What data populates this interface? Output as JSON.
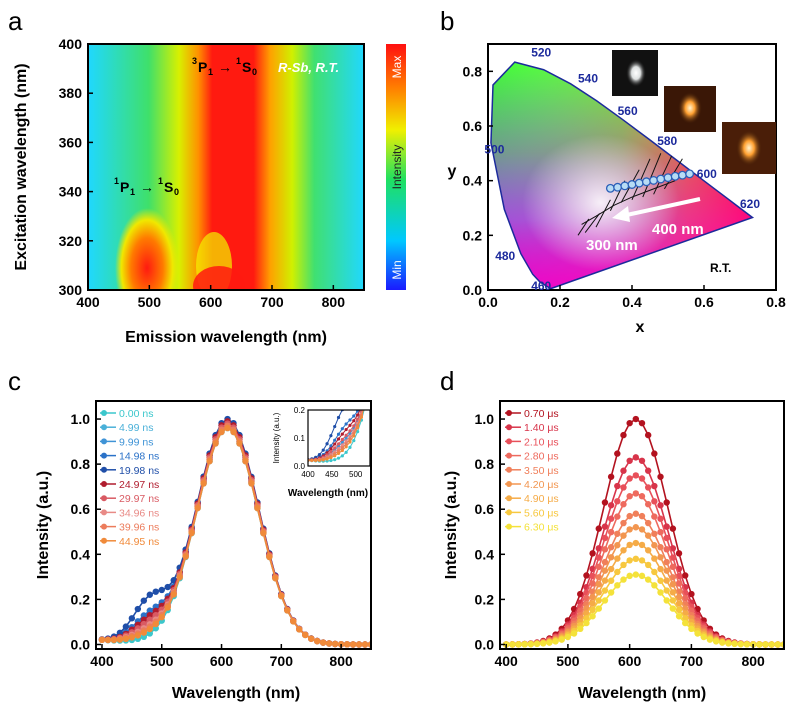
{
  "panel_labels": [
    "a",
    "b",
    "c",
    "d"
  ],
  "chart_data": [
    {
      "id": "a",
      "type": "heatmap",
      "xlabel": "Emission wavelength (nm)",
      "ylabel": "Excitation wavelength (nm)",
      "xlim": [
        400,
        850
      ],
      "ylim": [
        300,
        400
      ],
      "xticks": [
        400,
        500,
        600,
        700,
        800
      ],
      "yticks": [
        300,
        320,
        340,
        360,
        380,
        400
      ],
      "colorbar": {
        "max_label": "Max",
        "mid_label": "Intensity",
        "min_label": "Min"
      },
      "annotations": {
        "top_right": "R-Sb, R.T.",
        "band1": {
          "from": "1P1",
          "to": "1S0"
        },
        "band2": {
          "from": "3P1",
          "to": "1S0"
        }
      },
      "bands_nm": {
        "main_center": 615,
        "sideband_center": 490,
        "sideband_excitation_range": [
          300,
          333
        ]
      }
    },
    {
      "id": "b",
      "type": "scatter",
      "subtype": "cie1931",
      "xlabel": "x",
      "ylabel": "y",
      "xlim": [
        0.0,
        0.8
      ],
      "ylim": [
        0.0,
        0.9
      ],
      "xticks": [
        "0.0",
        "0.2",
        "0.4",
        "0.6",
        "0.8"
      ],
      "yticks": [
        "0.0",
        "0.2",
        "0.4",
        "0.6",
        "0.8"
      ],
      "locus_labels": [
        "520",
        "540",
        "560",
        "580",
        "600",
        "620",
        "500",
        "480",
        "460"
      ],
      "arrow_start_label": "400 nm",
      "arrow_end_label": "300 nm",
      "condition_label": "R.T.",
      "points": [
        [
          0.34,
          0.372
        ],
        [
          0.36,
          0.376
        ],
        [
          0.38,
          0.381
        ],
        [
          0.4,
          0.386
        ],
        [
          0.42,
          0.391
        ],
        [
          0.44,
          0.396
        ],
        [
          0.46,
          0.401
        ],
        [
          0.48,
          0.406
        ],
        [
          0.5,
          0.411
        ],
        [
          0.52,
          0.416
        ],
        [
          0.54,
          0.42
        ],
        [
          0.56,
          0.425
        ]
      ]
    },
    {
      "id": "c",
      "type": "line",
      "xlabel": "Wavelength (nm)",
      "ylabel": "Intensity (a.u.)",
      "xlim": [
        390,
        850
      ],
      "ylim": [
        -0.02,
        1.08
      ],
      "xticks": [
        400,
        500,
        600,
        700,
        800
      ],
      "yticks": [
        "0.0",
        "0.2",
        "0.4",
        "0.6",
        "0.8",
        "1.0"
      ],
      "peak_nm": 610,
      "series": [
        {
          "name": "0.00 ns",
          "color": "#3bc7cc",
          "peak": 0.96,
          "shoulder": 0.0
        },
        {
          "name": "4.99 ns",
          "color": "#4ab0d8",
          "peak": 0.97,
          "shoulder": 0.03
        },
        {
          "name": "9.99 ns",
          "color": "#3f93d6",
          "peak": 0.98,
          "shoulder": 0.05
        },
        {
          "name": "14.98 ns",
          "color": "#2b72c8",
          "peak": 0.99,
          "shoulder": 0.1
        },
        {
          "name": "19.98 ns",
          "color": "#1f4ea8",
          "peak": 1.0,
          "shoulder": 0.17
        },
        {
          "name": "24.97 ns",
          "color": "#b01c2e",
          "peak": 0.99,
          "shoulder": 0.08
        },
        {
          "name": "29.97 ns",
          "color": "#d95a63",
          "peak": 0.98,
          "shoulder": 0.06
        },
        {
          "name": "34.96 ns",
          "color": "#e88a86",
          "peak": 0.97,
          "shoulder": 0.04
        },
        {
          "name": "39.96 ns",
          "color": "#ec7c5c",
          "peak": 0.97,
          "shoulder": 0.03
        },
        {
          "name": "44.95 ns",
          "color": "#f08a3a",
          "peak": 0.96,
          "shoulder": 0.02
        }
      ],
      "inset": {
        "xlabel": "Wavelength (nm)",
        "ylabel": "Intensity (a.u.)",
        "xlim": [
          400,
          530
        ],
        "ylim": [
          0,
          0.2
        ],
        "xticks": [
          400,
          450,
          500
        ],
        "yticks": [
          "0.0",
          "0.1",
          "0.2"
        ]
      }
    },
    {
      "id": "d",
      "type": "line",
      "xlabel": "Wavelength (nm)",
      "ylabel": "Intensity (a.u.)",
      "xlim": [
        390,
        850
      ],
      "ylim": [
        -0.02,
        1.08
      ],
      "xticks": [
        400,
        500,
        600,
        700,
        800
      ],
      "yticks": [
        "0.0",
        "0.2",
        "0.4",
        "0.6",
        "0.8",
        "1.0"
      ],
      "peak_nm": 610,
      "series": [
        {
          "name": "0.70 μs",
          "color": "#b3121f",
          "peak": 1.0
        },
        {
          "name": "1.40 μs",
          "color": "#d8344a",
          "peak": 0.83
        },
        {
          "name": "2.10 μs",
          "color": "#e8505a",
          "peak": 0.75
        },
        {
          "name": "2.80 μs",
          "color": "#ee6a5e",
          "peak": 0.67
        },
        {
          "name": "3.50 μs",
          "color": "#f07f5a",
          "peak": 0.58
        },
        {
          "name": "4.20 μs",
          "color": "#f29650",
          "peak": 0.52
        },
        {
          "name": "4.90 μs",
          "color": "#f5ab47",
          "peak": 0.45
        },
        {
          "name": "5.60 μs",
          "color": "#f7c83f",
          "peak": 0.38
        },
        {
          "name": "6.30 μs",
          "color": "#f4e23a",
          "peak": 0.31
        }
      ]
    }
  ]
}
